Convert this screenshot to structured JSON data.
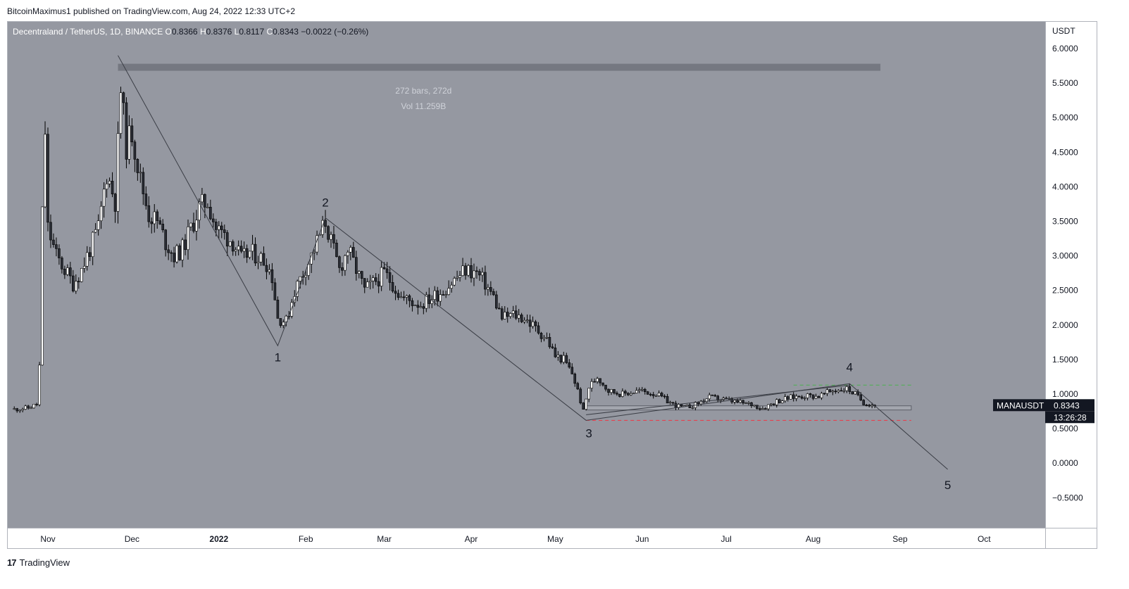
{
  "header": {
    "published_text": "BitcoinMaximus1 published on TradingView.com, Aug 24, 2022 12:33 UTC+2"
  },
  "footer": {
    "logo_glyph": "17",
    "brand": "TradingView"
  },
  "colors": {
    "background": "#9598a1",
    "candle": "#ffffff",
    "wick": "#000000",
    "line": "#3a3d45",
    "green_dashed": "#4caf50",
    "red_dashed": "#f23645",
    "box": "#6b6e77"
  },
  "chart_data": {
    "type": "candlestick",
    "symbol_info": {
      "title": "Decentraland / TetherUS, 1D, BINANCE",
      "o_label": "O",
      "o_value": "0.8366",
      "h_label": "H",
      "h_value": "0.8376",
      "l_label": "L",
      "l_value": "0.8117",
      "c_label": "C",
      "c_value": "0.8343",
      "change": "−0.0022 (−0.26%)"
    },
    "y_axis": {
      "unit": "USDT",
      "ylim": [
        -0.9,
        6.4
      ],
      "ticks": [
        "6.0000",
        "5.5000",
        "5.0000",
        "4.5000",
        "4.0000",
        "3.5000",
        "3.0000",
        "2.5000",
        "2.0000",
        "1.5000",
        "1.0000",
        "0.5000",
        "0.0000",
        "−0.5000"
      ],
      "tick_values": [
        6,
        5.5,
        5,
        4.5,
        4,
        3.5,
        3,
        2.5,
        2,
        1.5,
        1,
        0.5,
        0,
        -0.5
      ]
    },
    "x_axis": {
      "labels": [
        "Nov",
        "Dec",
        "2022",
        "Feb",
        "Mar",
        "Apr",
        "May",
        "Jun",
        "Jul",
        "Aug",
        "Sep",
        "Oct"
      ],
      "label_dates": [
        "2021-11-01",
        "2021-12-01",
        "2022-01-01",
        "2022-02-01",
        "2022-03-01",
        "2022-04-01",
        "2022-05-01",
        "2022-06-01",
        "2022-07-01",
        "2022-08-01",
        "2022-09-01",
        "2022-10-01"
      ]
    },
    "price_path": [
      [
        "2021-10-20",
        0.78
      ],
      [
        "2021-10-25",
        0.8
      ],
      [
        "2021-10-28",
        0.85
      ],
      [
        "2021-10-29",
        1.4
      ],
      [
        "2021-10-30",
        3.6
      ],
      [
        "2021-10-31",
        4.8
      ],
      [
        "2021-11-01",
        3.4
      ],
      [
        "2021-11-04",
        3.0
      ],
      [
        "2021-11-07",
        2.8
      ],
      [
        "2021-11-10",
        2.6
      ],
      [
        "2021-11-13",
        2.8
      ],
      [
        "2021-11-16",
        3.1
      ],
      [
        "2021-11-19",
        3.4
      ],
      [
        "2021-11-22",
        4.2
      ],
      [
        "2021-11-25",
        3.8
      ],
      [
        "2021-11-27",
        5.4
      ],
      [
        "2021-11-29",
        4.6
      ],
      [
        "2021-12-01",
        4.8
      ],
      [
        "2021-12-04",
        4.1
      ],
      [
        "2021-12-07",
        3.6
      ],
      [
        "2021-12-10",
        3.5
      ],
      [
        "2021-12-13",
        3.2
      ],
      [
        "2021-12-16",
        3.0
      ],
      [
        "2021-12-19",
        3.1
      ],
      [
        "2021-12-22",
        3.4
      ],
      [
        "2021-12-25",
        3.7
      ],
      [
        "2021-12-28",
        3.8
      ],
      [
        "2021-12-31",
        3.4
      ],
      [
        "2022-01-03",
        3.3
      ],
      [
        "2022-01-06",
        3.2
      ],
      [
        "2022-01-09",
        2.95
      ],
      [
        "2022-01-12",
        3.05
      ],
      [
        "2022-01-15",
        3.0
      ],
      [
        "2022-01-18",
        2.9
      ],
      [
        "2022-01-20",
        2.7
      ],
      [
        "2022-01-22",
        2.1
      ],
      [
        "2022-01-25",
        2.05
      ],
      [
        "2022-01-28",
        2.5
      ],
      [
        "2022-01-31",
        2.75
      ],
      [
        "2022-02-03",
        3.0
      ],
      [
        "2022-02-06",
        3.3
      ],
      [
        "2022-02-08",
        3.5
      ],
      [
        "2022-02-10",
        3.2
      ],
      [
        "2022-02-13",
        2.8
      ],
      [
        "2022-02-16",
        3.1
      ],
      [
        "2022-02-19",
        2.8
      ],
      [
        "2022-02-22",
        2.5
      ],
      [
        "2022-02-25",
        2.6
      ],
      [
        "2022-03-01",
        2.75
      ],
      [
        "2022-03-04",
        2.6
      ],
      [
        "2022-03-07",
        2.4
      ],
      [
        "2022-03-10",
        2.35
      ],
      [
        "2022-03-14",
        2.3
      ],
      [
        "2022-03-18",
        2.4
      ],
      [
        "2022-03-22",
        2.5
      ],
      [
        "2022-03-26",
        2.65
      ],
      [
        "2022-03-30",
        2.8
      ],
      [
        "2022-04-03",
        2.75
      ],
      [
        "2022-04-06",
        2.6
      ],
      [
        "2022-04-09",
        2.4
      ],
      [
        "2022-04-12",
        2.1
      ],
      [
        "2022-04-16",
        2.15
      ],
      [
        "2022-04-20",
        2.1
      ],
      [
        "2022-04-24",
        1.95
      ],
      [
        "2022-04-28",
        1.8
      ],
      [
        "2022-05-01",
        1.55
      ],
      [
        "2022-05-04",
        1.5
      ],
      [
        "2022-05-07",
        1.3
      ],
      [
        "2022-05-09",
        1.05
      ],
      [
        "2022-05-11",
        0.75
      ],
      [
        "2022-05-13",
        1.1
      ],
      [
        "2022-05-16",
        1.25
      ],
      [
        "2022-05-20",
        1.05
      ],
      [
        "2022-05-25",
        1.0
      ],
      [
        "2022-05-31",
        1.05
      ],
      [
        "2022-06-06",
        1.0
      ],
      [
        "2022-06-12",
        0.85
      ],
      [
        "2022-06-16",
        0.8
      ],
      [
        "2022-06-20",
        0.85
      ],
      [
        "2022-06-25",
        0.95
      ],
      [
        "2022-06-30",
        0.92
      ],
      [
        "2022-07-05",
        0.88
      ],
      [
        "2022-07-10",
        0.85
      ],
      [
        "2022-07-14",
        0.8
      ],
      [
        "2022-07-19",
        0.9
      ],
      [
        "2022-07-24",
        0.95
      ],
      [
        "2022-07-29",
        0.98
      ],
      [
        "2022-08-03",
        0.97
      ],
      [
        "2022-08-08",
        1.05
      ],
      [
        "2022-08-13",
        1.08
      ],
      [
        "2022-08-16",
        1.0
      ],
      [
        "2022-08-19",
        0.88
      ],
      [
        "2022-08-22",
        0.85
      ],
      [
        "2022-08-24",
        0.83
      ]
    ],
    "waves": [
      {
        "label": "1",
        "date": "2022-01-22",
        "price": 1.7
      },
      {
        "label": "2",
        "date": "2022-02-08",
        "price": 3.55
      },
      {
        "label": "3",
        "date": "2022-05-12",
        "price": 0.62
      },
      {
        "label": "4",
        "date": "2022-08-14",
        "price": 1.15
      },
      {
        "label": "5",
        "date": "2022-09-18",
        "price": -0.09
      }
    ],
    "wave_start": {
      "date": "2021-11-26",
      "price": 5.9
    },
    "measure": {
      "bars_text": "272 bars, 272d",
      "vol_text": "Vol 11.259B"
    },
    "green_level": 1.13,
    "red_level": 0.62,
    "support_box": [
      0.77,
      0.83
    ],
    "last_price": {
      "symbol": "MANAUSDT",
      "value": "0.8343",
      "price": 0.8343,
      "countdown": "13:26:28"
    }
  }
}
